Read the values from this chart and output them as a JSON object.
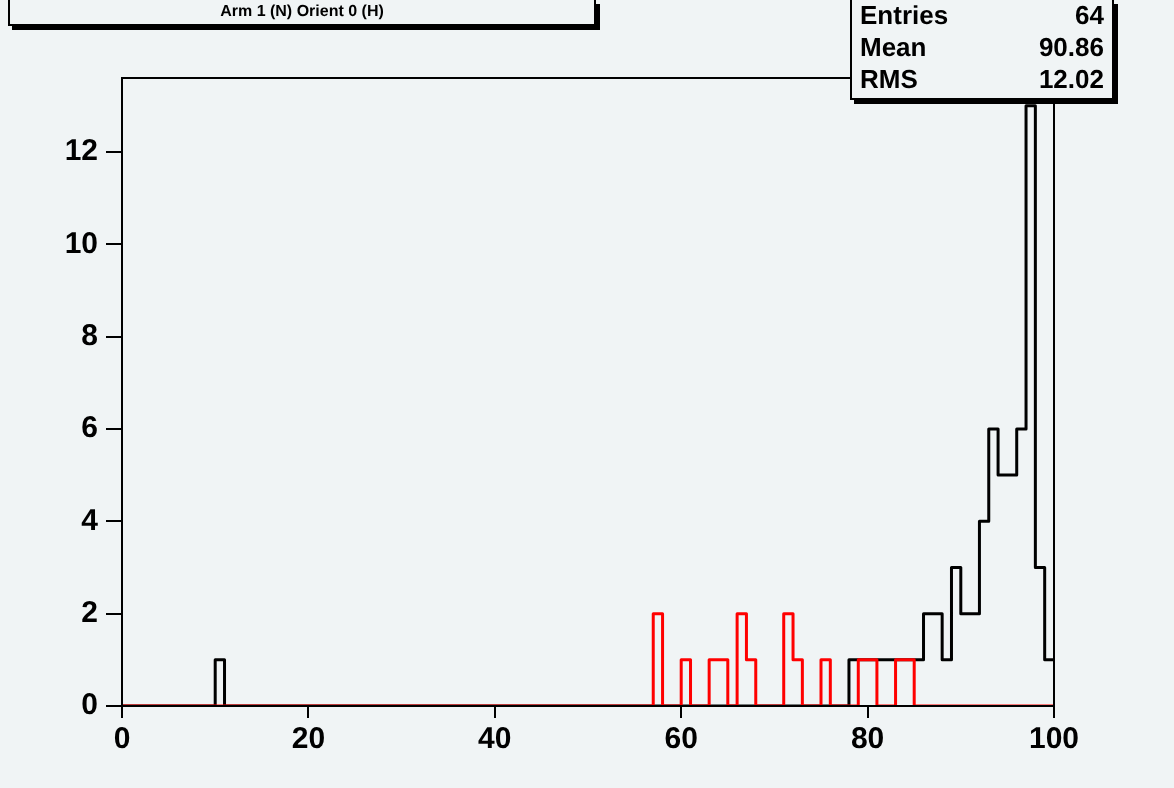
{
  "chart_data": {
    "type": "histogram",
    "title": "Arm 1 (N) Orient 0 (H)",
    "bins": [
      0,
      1,
      2,
      3,
      4,
      5,
      6,
      7,
      8,
      9,
      10,
      11,
      12,
      13,
      14,
      15,
      16,
      17,
      18,
      19,
      20,
      21,
      22,
      23,
      24,
      25,
      26,
      27,
      28,
      29,
      30,
      31,
      32,
      33,
      34,
      35,
      36,
      37,
      38,
      39,
      40,
      41,
      42,
      43,
      44,
      45,
      46,
      47,
      48,
      49,
      50,
      51,
      52,
      53,
      54,
      55,
      56,
      57,
      58,
      59,
      60,
      61,
      62,
      63,
      64,
      65,
      66,
      67,
      68,
      69,
      70,
      71,
      72,
      73,
      74,
      75,
      76,
      77,
      78,
      79,
      80,
      81,
      82,
      83,
      84,
      85,
      86,
      87,
      88,
      89,
      90,
      91,
      92,
      93,
      94,
      95,
      96,
      97,
      98,
      99,
      100
    ],
    "series": [
      {
        "color": "#000000",
        "values": [
          0,
          0,
          0,
          0,
          0,
          0,
          0,
          0,
          0,
          0,
          1,
          0,
          0,
          0,
          0,
          0,
          0,
          0,
          0,
          0,
          0,
          0,
          0,
          0,
          0,
          0,
          0,
          0,
          0,
          0,
          0,
          0,
          0,
          0,
          0,
          0,
          0,
          0,
          0,
          0,
          0,
          0,
          0,
          0,
          0,
          0,
          0,
          0,
          0,
          0,
          0,
          0,
          0,
          0,
          0,
          0,
          0,
          0,
          0,
          0,
          0,
          0,
          0,
          0,
          0,
          0,
          0,
          0,
          0,
          0,
          0,
          0,
          0,
          0,
          0,
          0,
          0,
          0,
          1,
          1,
          1,
          1,
          1,
          1,
          1,
          1,
          2,
          2,
          1,
          3,
          2,
          2,
          4,
          6,
          5,
          5,
          6,
          13,
          3,
          1
        ]
      },
      {
        "color": "#ff0000",
        "values": [
          0,
          0,
          0,
          0,
          0,
          0,
          0,
          0,
          0,
          0,
          0,
          0,
          0,
          0,
          0,
          0,
          0,
          0,
          0,
          0,
          0,
          0,
          0,
          0,
          0,
          0,
          0,
          0,
          0,
          0,
          0,
          0,
          0,
          0,
          0,
          0,
          0,
          0,
          0,
          0,
          0,
          0,
          0,
          0,
          0,
          0,
          0,
          0,
          0,
          0,
          0,
          0,
          0,
          0,
          0,
          0,
          0,
          2,
          0,
          0,
          1,
          0,
          0,
          1,
          1,
          0,
          2,
          1,
          0,
          0,
          0,
          2,
          1,
          0,
          0,
          1,
          0,
          0,
          0,
          1,
          1,
          0,
          0,
          1,
          1,
          0,
          0,
          0,
          0,
          0,
          0,
          0,
          0,
          0,
          0,
          0,
          0,
          0,
          0,
          0
        ]
      }
    ],
    "xlim": [
      0,
      100
    ],
    "xticks": [
      0,
      20,
      40,
      60,
      80,
      100
    ],
    "ylim": [
      0,
      13.6
    ],
    "yticks": [
      0,
      2,
      4,
      6,
      8,
      10,
      12
    ],
    "grid": false,
    "legend": false,
    "annotations": [
      "Entries 64",
      "Mean 90.86",
      "RMS 12.02"
    ]
  }
}
